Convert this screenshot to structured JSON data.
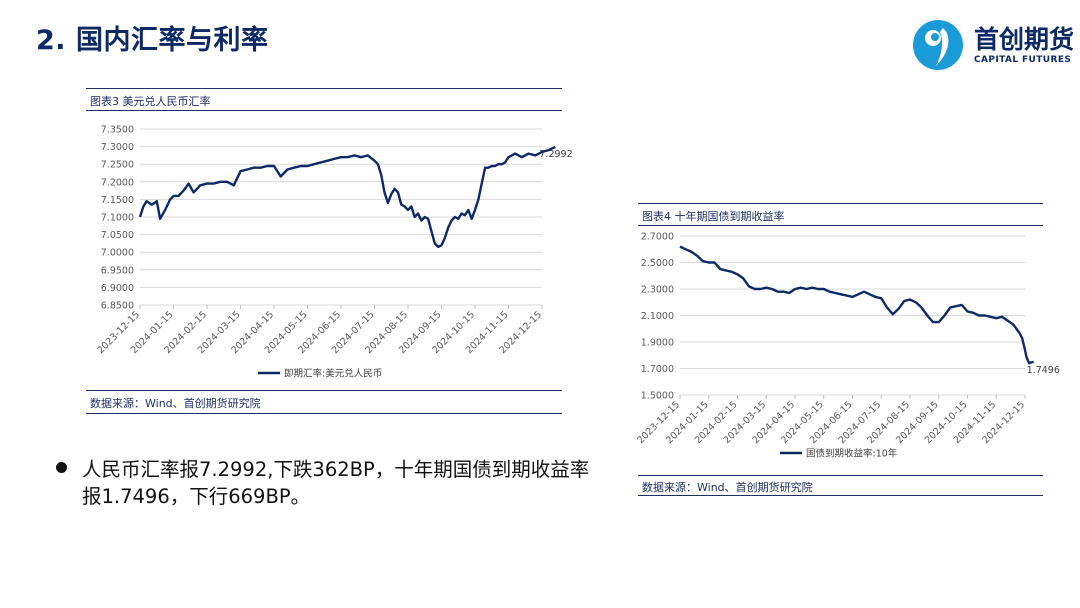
{
  "slide": {
    "title": "2. 国内汇率与利率",
    "bullet": "人民币汇率报7.2992,下跌362BP，十年期国债到期收益率报1.7496，下行669BP。"
  },
  "logo": {
    "name_cn": "首创期货",
    "name_en": "CAPITAL FUTURES"
  },
  "colors": {
    "series": "#0d2a66",
    "rule": "#1f2f66",
    "grid": "#d9d9d9",
    "axis_text": "#595959"
  },
  "chart_data": [
    {
      "type": "line",
      "caption": "图表3  美元兑人民币汇率",
      "source": "数据来源：Wind、首创期货研究院",
      "series_name": "即期汇率:美元兑人民币",
      "last_label": "7.2992",
      "yticks": [
        "7.3500",
        "7.3000",
        "7.2500",
        "7.2000",
        "7.1500",
        "7.1000",
        "7.0500",
        "7.0000",
        "6.9500",
        "6.9000",
        "6.8500"
      ],
      "ylim": [
        6.85,
        7.35
      ],
      "xticks": [
        "2023-12-15",
        "2024-01-15",
        "2024-02-15",
        "2024-03-15",
        "2024-04-15",
        "2024-05-15",
        "2024-06-15",
        "2024-07-15",
        "2024-08-15",
        "2024-09-15",
        "2024-10-15",
        "2024-11-15",
        "2024-12-15"
      ],
      "grid": true,
      "legend_position": "bottom",
      "x": [
        0,
        0.1,
        0.2,
        0.35,
        0.5,
        0.6,
        0.75,
        0.9,
        1,
        1.15,
        1.3,
        1.45,
        1.6,
        1.8,
        2,
        2.2,
        2.4,
        2.6,
        2.8,
        3,
        3.2,
        3.4,
        3.6,
        3.8,
        4,
        4.2,
        4.4,
        4.6,
        4.8,
        5,
        5.2,
        5.4,
        5.6,
        5.8,
        6,
        6.2,
        6.4,
        6.6,
        6.8,
        7,
        7.1,
        7.2,
        7.3,
        7.4,
        7.5,
        7.6,
        7.7,
        7.8,
        7.9,
        8,
        8.1,
        8.2,
        8.3,
        8.4,
        8.5,
        8.6,
        8.7,
        8.8,
        8.9,
        9,
        9.1,
        9.2,
        9.3,
        9.4,
        9.5,
        9.6,
        9.7,
        9.8,
        9.9,
        10,
        10.1,
        10.2,
        10.3,
        10.4,
        10.5,
        10.6,
        10.7,
        10.8,
        10.9,
        11,
        11.2,
        11.4,
        11.6,
        11.8,
        12,
        12.2,
        12.4
      ],
      "y": [
        7.1,
        7.13,
        7.145,
        7.135,
        7.145,
        7.095,
        7.12,
        7.15,
        7.16,
        7.16,
        7.175,
        7.195,
        7.17,
        7.19,
        7.195,
        7.195,
        7.2,
        7.2,
        7.19,
        7.23,
        7.235,
        7.24,
        7.24,
        7.245,
        7.245,
        7.215,
        7.235,
        7.24,
        7.245,
        7.245,
        7.25,
        7.255,
        7.26,
        7.265,
        7.27,
        7.27,
        7.275,
        7.27,
        7.275,
        7.26,
        7.25,
        7.22,
        7.17,
        7.14,
        7.165,
        7.18,
        7.17,
        7.135,
        7.13,
        7.12,
        7.13,
        7.1,
        7.11,
        7.09,
        7.1,
        7.095,
        7.06,
        7.025,
        7.015,
        7.02,
        7.04,
        7.07,
        7.09,
        7.1,
        7.095,
        7.11,
        7.105,
        7.12,
        7.095,
        7.12,
        7.15,
        7.195,
        7.24,
        7.24,
        7.245,
        7.245,
        7.25,
        7.25,
        7.255,
        7.27,
        7.28,
        7.27,
        7.28,
        7.275,
        7.285,
        7.29,
        7.2992
      ]
    },
    {
      "type": "line",
      "caption": "图表4  十年期国债到期收益率",
      "source": "数据来源：Wind、首创期货研究院",
      "series_name": "国债到期收益率:10年",
      "last_label": "1.7496",
      "yticks": [
        "2.7000",
        "2.5000",
        "2.3000",
        "2.1000",
        "1.9000",
        "1.7000",
        "1.5000"
      ],
      "ylim": [
        1.5,
        2.7
      ],
      "xticks": [
        "2023-12-15",
        "2024-01-15",
        "2024-02-15",
        "2024-03-15",
        "2024-04-15",
        "2024-05-15",
        "2024-06-15",
        "2024-07-15",
        "2024-08-15",
        "2024-09-15",
        "2024-10-15",
        "2024-11-15",
        "2024-12-15"
      ],
      "grid": true,
      "legend_position": "bottom",
      "x": [
        0,
        0.2,
        0.4,
        0.6,
        0.8,
        1,
        1.2,
        1.4,
        1.6,
        1.8,
        2,
        2.2,
        2.4,
        2.6,
        2.8,
        3,
        3.2,
        3.4,
        3.6,
        3.8,
        4,
        4.2,
        4.4,
        4.6,
        4.8,
        5,
        5.2,
        5.4,
        5.6,
        5.8,
        6,
        6.2,
        6.4,
        6.6,
        6.8,
        7,
        7.2,
        7.4,
        7.6,
        7.8,
        8,
        8.2,
        8.4,
        8.6,
        8.8,
        9,
        9.2,
        9.4,
        9.6,
        9.8,
        10,
        10.2,
        10.4,
        10.6,
        10.8,
        11,
        11.2,
        11.4,
        11.6,
        11.8,
        11.9,
        12,
        12.05,
        12.1,
        12.15,
        12.2,
        12.3
      ],
      "y": [
        2.62,
        2.6,
        2.58,
        2.55,
        2.51,
        2.5,
        2.5,
        2.45,
        2.44,
        2.43,
        2.41,
        2.38,
        2.32,
        2.3,
        2.3,
        2.31,
        2.3,
        2.28,
        2.28,
        2.27,
        2.3,
        2.31,
        2.3,
        2.31,
        2.3,
        2.3,
        2.28,
        2.27,
        2.26,
        2.25,
        2.24,
        2.26,
        2.28,
        2.26,
        2.24,
        2.23,
        2.16,
        2.11,
        2.15,
        2.21,
        2.22,
        2.2,
        2.16,
        2.1,
        2.05,
        2.05,
        2.1,
        2.16,
        2.17,
        2.18,
        2.13,
        2.12,
        2.1,
        2.1,
        2.09,
        2.08,
        2.09,
        2.06,
        2.03,
        1.97,
        1.93,
        1.84,
        1.79,
        1.76,
        1.74,
        1.745,
        1.7496
      ]
    }
  ]
}
